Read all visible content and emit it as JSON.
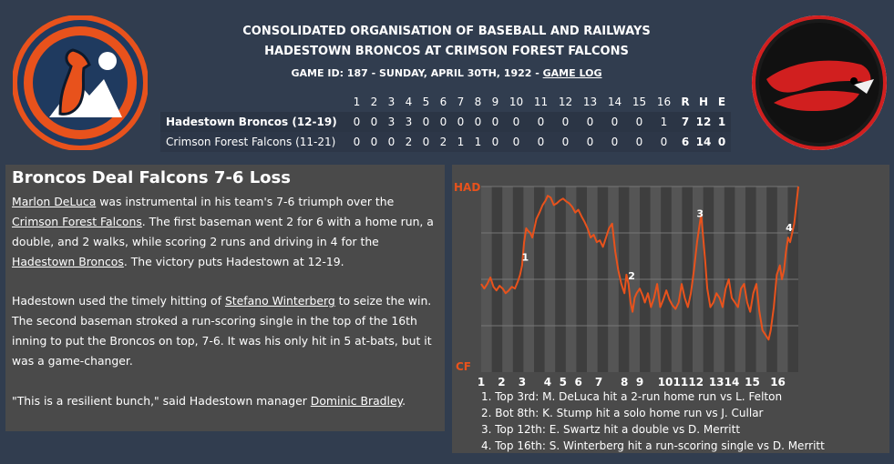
{
  "header": {
    "line1": "CONSOLIDATED ORGANISATION OF BASEBALL AND RAILWAYS",
    "line2": "HADESTOWN BRONCOS AT CRIMSON FOREST FALCONS",
    "game_info": "GAME ID: 187 - SUNDAY, APRIL 30TH, 1922 - ",
    "game_log_link": "GAME LOG"
  },
  "colors": {
    "accent_orange": "#e8521c",
    "falcon_red": "#d11f1f",
    "home_navy": "#1f3a5f"
  },
  "box_score": {
    "innings": [
      "1",
      "2",
      "3",
      "4",
      "5",
      "6",
      "7",
      "8",
      "9",
      "10",
      "11",
      "12",
      "13",
      "14",
      "15",
      "16"
    ],
    "totals_headers": [
      "R",
      "H",
      "E"
    ],
    "teams": [
      {
        "name": "Hadestown Broncos (12-19)",
        "innings": [
          "0",
          "0",
          "3",
          "3",
          "0",
          "0",
          "0",
          "0",
          "0",
          "0",
          "0",
          "0",
          "0",
          "0",
          "0",
          "1"
        ],
        "totals": [
          "7",
          "12",
          "1"
        ]
      },
      {
        "name": "Crimson Forest Falcons (11-21)",
        "innings": [
          "0",
          "0",
          "0",
          "2",
          "0",
          "2",
          "1",
          "1",
          "0",
          "0",
          "0",
          "0",
          "0",
          "0",
          "0",
          "0"
        ],
        "totals": [
          "6",
          "14",
          "0"
        ]
      }
    ]
  },
  "story": {
    "title": "Broncos Deal Falcons 7-6 Loss",
    "p1_link1": "Marlon DeLuca",
    "p1_t1": " was instrumental in his team's 7-6 triumph over the ",
    "p1_link2": "Crimson Forest Falcons",
    "p1_t2": ". The first baseman went 2 for 6 with a home run, a double, and 2 walks, while scoring 2 runs and driving in 4 for the ",
    "p1_link3": "Hadestown Broncos",
    "p1_t3": ". The victory puts Hadestown at 12-19.",
    "p2_t1": "Hadestown used the timely hitting of ",
    "p2_link1": "Stefano Winterberg",
    "p2_t2": " to seize the win. The second baseman stroked a run-scoring single in the top of the 16th inning to put the Broncos on top, 7-6. It was his only hit in 5 at-bats, but it was a game-changer.",
    "p3_t1": "\"This is a resilient bunch,\" said Hadestown manager ",
    "p3_link1": "Dominic Bradley",
    "p3_t2": "."
  },
  "chart_data": {
    "type": "line",
    "y_top_label": "HAD",
    "y_bottom_label": "CF",
    "ylim": [
      -1,
      1
    ],
    "x_ticks": [
      "1",
      "2",
      "3",
      "4",
      "5",
      "6",
      "7",
      "8",
      "9",
      "10",
      "11",
      "12",
      "13",
      "14",
      "15",
      "16"
    ],
    "x_tick_positions": [
      1.0,
      2.0,
      3.0,
      4.25,
      5.0,
      5.75,
      6.75,
      8.0,
      8.75,
      10.0,
      10.75,
      11.5,
      12.5,
      13.25,
      14.25,
      15.5
    ],
    "x_range": [
      1,
      16.5
    ],
    "series": [
      {
        "values": [
          [
            1.0,
            -0.05
          ],
          [
            1.15,
            -0.1
          ],
          [
            1.3,
            -0.05
          ],
          [
            1.45,
            0.02
          ],
          [
            1.6,
            -0.08
          ],
          [
            1.75,
            -0.12
          ],
          [
            1.9,
            -0.07
          ],
          [
            2.05,
            -0.1
          ],
          [
            2.2,
            -0.15
          ],
          [
            2.35,
            -0.12
          ],
          [
            2.5,
            -0.08
          ],
          [
            2.65,
            -0.1
          ],
          [
            2.8,
            -0.02
          ],
          [
            2.9,
            0.05
          ],
          [
            3.0,
            0.15
          ],
          [
            3.1,
            0.4
          ],
          [
            3.2,
            0.55
          ],
          [
            3.3,
            0.52
          ],
          [
            3.4,
            0.5
          ],
          [
            3.5,
            0.45
          ],
          [
            3.6,
            0.55
          ],
          [
            3.7,
            0.65
          ],
          [
            3.85,
            0.72
          ],
          [
            4.0,
            0.8
          ],
          [
            4.15,
            0.85
          ],
          [
            4.25,
            0.9
          ],
          [
            4.4,
            0.88
          ],
          [
            4.55,
            0.8
          ],
          [
            4.7,
            0.82
          ],
          [
            4.85,
            0.85
          ],
          [
            5.0,
            0.87
          ],
          [
            5.15,
            0.84
          ],
          [
            5.3,
            0.82
          ],
          [
            5.45,
            0.78
          ],
          [
            5.6,
            0.72
          ],
          [
            5.75,
            0.75
          ],
          [
            5.9,
            0.68
          ],
          [
            6.05,
            0.62
          ],
          [
            6.2,
            0.55
          ],
          [
            6.35,
            0.45
          ],
          [
            6.5,
            0.48
          ],
          [
            6.65,
            0.4
          ],
          [
            6.8,
            0.42
          ],
          [
            6.95,
            0.35
          ],
          [
            7.1,
            0.45
          ],
          [
            7.25,
            0.55
          ],
          [
            7.4,
            0.6
          ],
          [
            7.55,
            0.3
          ],
          [
            7.7,
            0.1
          ],
          [
            7.85,
            -0.05
          ],
          [
            8.0,
            -0.15
          ],
          [
            8.1,
            0.05
          ],
          [
            8.2,
            -0.05
          ],
          [
            8.3,
            -0.25
          ],
          [
            8.4,
            -0.35
          ],
          [
            8.5,
            -0.2
          ],
          [
            8.6,
            -0.15
          ],
          [
            8.75,
            -0.1
          ],
          [
            8.9,
            -0.18
          ],
          [
            9.0,
            -0.25
          ],
          [
            9.15,
            -0.15
          ],
          [
            9.3,
            -0.3
          ],
          [
            9.45,
            -0.2
          ],
          [
            9.6,
            -0.05
          ],
          [
            9.75,
            -0.3
          ],
          [
            9.9,
            -0.22
          ],
          [
            10.05,
            -0.12
          ],
          [
            10.2,
            -0.22
          ],
          [
            10.35,
            -0.28
          ],
          [
            10.5,
            -0.32
          ],
          [
            10.65,
            -0.25
          ],
          [
            10.8,
            -0.05
          ],
          [
            10.95,
            -0.2
          ],
          [
            11.1,
            -0.3
          ],
          [
            11.25,
            -0.15
          ],
          [
            11.4,
            0.1
          ],
          [
            11.55,
            0.4
          ],
          [
            11.65,
            0.55
          ],
          [
            11.75,
            0.7
          ],
          [
            11.85,
            0.45
          ],
          [
            11.95,
            0.2
          ],
          [
            12.05,
            -0.1
          ],
          [
            12.2,
            -0.3
          ],
          [
            12.35,
            -0.25
          ],
          [
            12.5,
            -0.15
          ],
          [
            12.65,
            -0.2
          ],
          [
            12.8,
            -0.3
          ],
          [
            12.95,
            -0.1
          ],
          [
            13.1,
            0.0
          ],
          [
            13.25,
            -0.2
          ],
          [
            13.4,
            -0.25
          ],
          [
            13.55,
            -0.3
          ],
          [
            13.7,
            -0.1
          ],
          [
            13.85,
            -0.05
          ],
          [
            14.0,
            -0.25
          ],
          [
            14.15,
            -0.35
          ],
          [
            14.3,
            -0.15
          ],
          [
            14.45,
            -0.05
          ],
          [
            14.6,
            -0.35
          ],
          [
            14.75,
            -0.55
          ],
          [
            14.9,
            -0.6
          ],
          [
            15.05,
            -0.65
          ],
          [
            15.15,
            -0.55
          ],
          [
            15.3,
            -0.3
          ],
          [
            15.45,
            0.05
          ],
          [
            15.6,
            0.15
          ],
          [
            15.7,
            0.0
          ],
          [
            15.8,
            0.1
          ],
          [
            15.9,
            0.3
          ],
          [
            16.0,
            0.45
          ],
          [
            16.1,
            0.4
          ],
          [
            16.2,
            0.5
          ],
          [
            16.3,
            0.6
          ],
          [
            16.4,
            0.8
          ],
          [
            16.5,
            1.0
          ]
        ]
      }
    ],
    "annotations": [
      {
        "label": "1",
        "x": 3.15,
        "y": 0.2
      },
      {
        "label": "2",
        "x": 8.35,
        "y": 0.0
      },
      {
        "label": "3",
        "x": 11.7,
        "y": 0.67
      },
      {
        "label": "4",
        "x": 16.05,
        "y": 0.52
      }
    ],
    "notes": [
      "1. Top 3rd: M. DeLuca hit a 2-run home run vs L. Felton",
      "2. Bot 8th: K. Stump hit a solo home run vs J. Cullar",
      "3. Top 12th: E. Swartz hit a double vs D. Merritt",
      "4. Top 16th: S. Winterberg hit a run-scoring single vs D. Merritt"
    ]
  }
}
